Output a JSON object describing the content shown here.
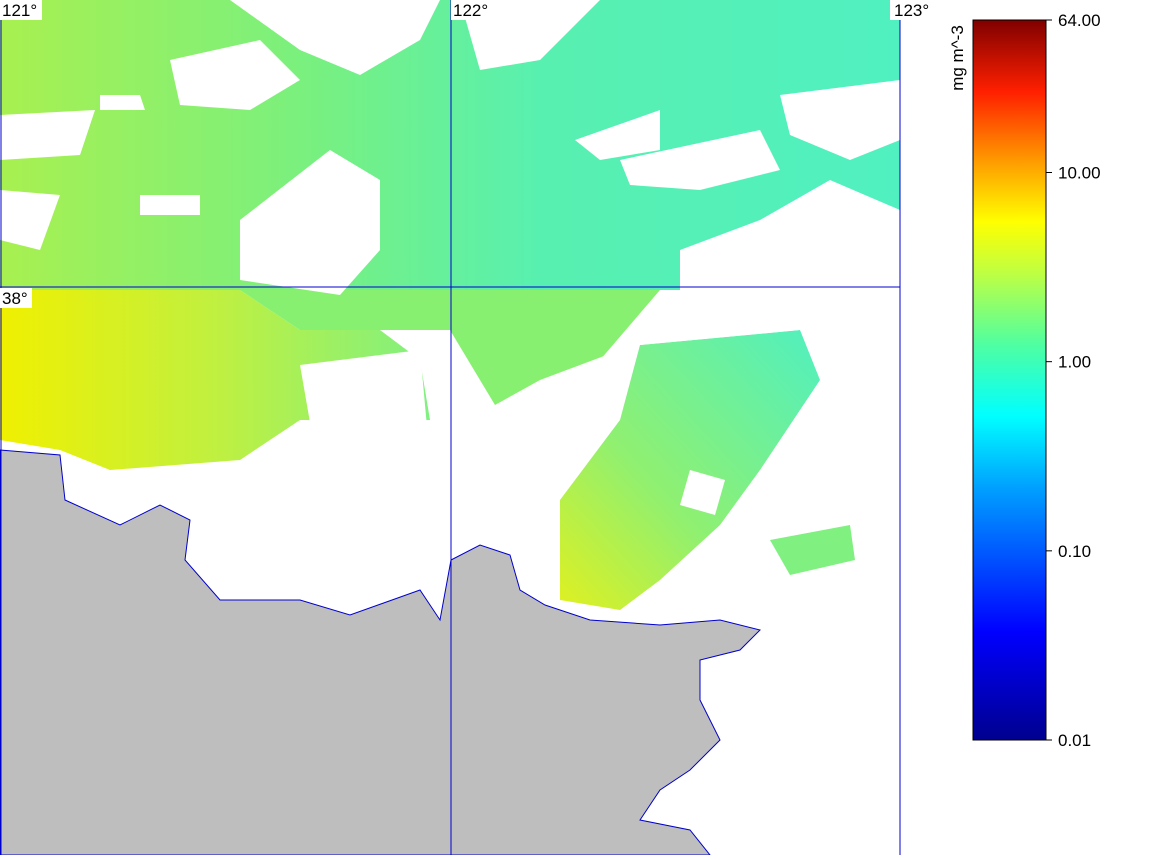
{
  "map": {
    "lon_labels": [
      "121°",
      "122°",
      "123°"
    ],
    "lat_labels": [
      "38°"
    ]
  },
  "colorbar": {
    "title": "mg m^-3",
    "lim": [
      0.01,
      64
    ],
    "log": true,
    "ticks": [
      {
        "value": 64,
        "label": "64.00"
      },
      {
        "value": 10,
        "label": "10.00"
      },
      {
        "value": 1,
        "label": "1.00"
      },
      {
        "value": 0.1,
        "label": "0.10"
      },
      {
        "value": 0.01,
        "label": "0.01"
      }
    ]
  }
}
